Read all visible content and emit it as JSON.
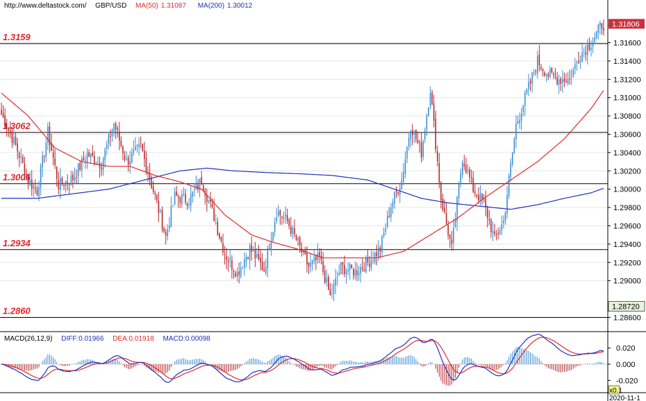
{
  "header": {
    "source": "http://www.deltastock.com/",
    "symbol": "GBP/USD",
    "ma50_label": "MA(50)",
    "ma50_value": "1.31087",
    "ma200_label": "MA(200)",
    "ma200_value": "1.30012"
  },
  "macd_header": {
    "label": "MACD(26,12,9)",
    "diff": "DIFF:0.01966",
    "dea": "DEA:0.01918",
    "macd": "MACD:0.00098"
  },
  "colors": {
    "bull": "#3a8fd6",
    "bear": "#b8282c",
    "ma50": "#e0292b",
    "ma200": "#1f2fbf",
    "level_label": "#e0292b",
    "diff": "#1f2fbf",
    "dea": "#e0292b",
    "price_box_bg": "#c8323c"
  },
  "chart_data": [
    {
      "type": "candlestick",
      "symbol": "GBP/USD",
      "ylim": [
        1.2852,
        1.3196
      ],
      "y_ticks": [
        "1.31600",
        "1.31400",
        "1.31200",
        "1.31000",
        "1.30800",
        "1.30600",
        "1.30400",
        "1.30200",
        "1.30000",
        "1.29800",
        "1.29600",
        "1.29400",
        "1.29200",
        "1.29000",
        "1.28600"
      ],
      "current_price": "1.31806",
      "crosshair_price": "1.28720",
      "levels": [
        {
          "label": "1.3159",
          "value": 1.3159
        },
        {
          "label": "1.3062",
          "value": 1.3062
        },
        {
          "label": "1.3006",
          "value": 1.3006
        },
        {
          "label": "1.2934",
          "value": 1.2934
        },
        {
          "label": "1.2860",
          "value": 1.286
        }
      ],
      "close_anchors": [
        [
          0,
          1.3082
        ],
        [
          8,
          1.3048
        ],
        [
          15,
          1.301
        ],
        [
          20,
          1.2998
        ],
        [
          26,
          1.3062
        ],
        [
          32,
          1.3005
        ],
        [
          40,
          1.3012
        ],
        [
          48,
          1.3038
        ],
        [
          56,
          1.3028
        ],
        [
          63,
          1.3072
        ],
        [
          70,
          1.303
        ],
        [
          78,
          1.3046
        ],
        [
          86,
          1.2992
        ],
        [
          92,
          1.2948
        ],
        [
          97,
          1.2992
        ],
        [
          105,
          1.2988
        ],
        [
          112,
          1.301
        ],
        [
          119,
          1.297
        ],
        [
          125,
          1.293
        ],
        [
          132,
          1.2908
        ],
        [
          139,
          1.2935
        ],
        [
          147,
          1.2912
        ],
        [
          154,
          1.2976
        ],
        [
          160,
          1.2965
        ],
        [
          166,
          1.294
        ],
        [
          172,
          1.2915
        ],
        [
          178,
          1.2925
        ],
        [
          184,
          1.2882
        ],
        [
          190,
          1.2915
        ],
        [
          198,
          1.291
        ],
        [
          205,
          1.292
        ],
        [
          212,
          1.2935
        ],
        [
          218,
          1.2982
        ],
        [
          224,
          1.301
        ],
        [
          229,
          1.307
        ],
        [
          235,
          1.304
        ],
        [
          240,
          1.311
        ],
        [
          246,
          1.299
        ],
        [
          252,
          1.2935
        ],
        [
          258,
          1.3035
        ],
        [
          264,
          1.3
        ],
        [
          270,
          1.2985
        ],
        [
          276,
          1.2945
        ],
        [
          281,
          1.2965
        ],
        [
          288,
          1.307
        ],
        [
          294,
          1.3105
        ],
        [
          300,
          1.314
        ],
        [
          306,
          1.3125
        ],
        [
          312,
          1.312
        ],
        [
          318,
          1.312
        ],
        [
          324,
          1.3148
        ],
        [
          330,
          1.316
        ],
        [
          336,
          1.318
        ]
      ],
      "ma50_anchors": [
        [
          0,
          1.3105
        ],
        [
          15,
          1.308
        ],
        [
          30,
          1.3045
        ],
        [
          45,
          1.303
        ],
        [
          60,
          1.3025
        ],
        [
          72,
          1.3025
        ],
        [
          86,
          1.3015
        ],
        [
          100,
          1.3008
        ],
        [
          112,
          1.3
        ],
        [
          125,
          1.2972
        ],
        [
          140,
          1.295
        ],
        [
          152,
          1.2942
        ],
        [
          165,
          1.2935
        ],
        [
          180,
          1.2925
        ],
        [
          195,
          1.2925
        ],
        [
          210,
          1.2925
        ],
        [
          225,
          1.2932
        ],
        [
          240,
          1.295
        ],
        [
          255,
          1.2968
        ],
        [
          270,
          1.299
        ],
        [
          285,
          1.301
        ],
        [
          300,
          1.303
        ],
        [
          315,
          1.3055
        ],
        [
          330,
          1.3088
        ],
        [
          337,
          1.3108
        ]
      ],
      "ma200_anchors": [
        [
          0,
          1.299
        ],
        [
          20,
          1.299
        ],
        [
          40,
          1.2995
        ],
        [
          60,
          1.3
        ],
        [
          80,
          1.301
        ],
        [
          100,
          1.302
        ],
        [
          115,
          1.3023
        ],
        [
          130,
          1.302
        ],
        [
          150,
          1.3018
        ],
        [
          165,
          1.3017
        ],
        [
          185,
          1.3015
        ],
        [
          205,
          1.301
        ],
        [
          220,
          1.3
        ],
        [
          235,
          1.299
        ],
        [
          250,
          1.2985
        ],
        [
          270,
          1.2981
        ],
        [
          285,
          1.2978
        ],
        [
          300,
          1.2983
        ],
        [
          315,
          1.299
        ],
        [
          330,
          1.2996
        ],
        [
          337,
          1.3001
        ]
      ]
    },
    {
      "type": "macd",
      "params": "MACD(26,12,9)",
      "diff": 0.01966,
      "dea": 0.01918,
      "macd": 0.00098,
      "y_ticks": [
        "0.020",
        "0.000",
        "-0.020"
      ]
    }
  ],
  "date_label": "2020-11-1",
  "corner_label": "x0.1"
}
